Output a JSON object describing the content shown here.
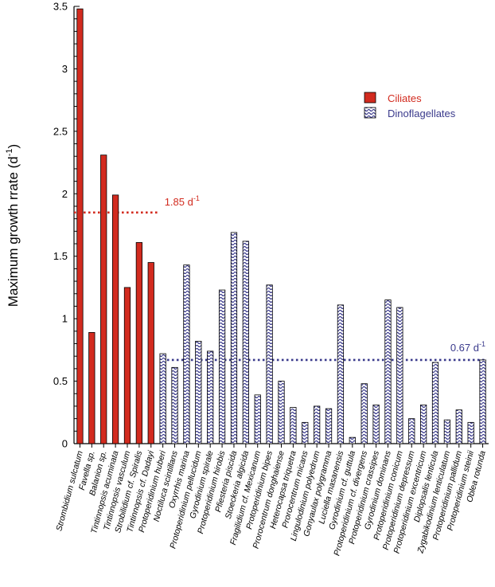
{
  "chart_data": {
    "type": "bar",
    "title": "",
    "xlabel": "",
    "ylabel": "Maximum growth rrate (d",
    "ylabel_sup": "-1",
    "ylabel_tail": ")",
    "ylim": [
      0,
      3.5
    ],
    "yticks": [
      "0",
      "0.5",
      "1",
      "1.5",
      "2",
      "2.5",
      "3",
      "3.5"
    ],
    "grid": false,
    "legend_position": "top-right",
    "series": [
      {
        "name": "Ciliates",
        "color": "#d22b1f",
        "fill": "solid",
        "categories": [
          "Strombidium sulcatum",
          "Favella sp.",
          "Balanion sp.",
          "Tintinnopsis acuminata",
          "Tintinnopsis vasculum",
          "Strobilidium cf. Spiralis",
          "Tintinnopsis cf. Dadayi"
        ],
        "values": [
          3.48,
          0.89,
          2.31,
          1.99,
          1.25,
          1.61,
          1.45
        ]
      },
      {
        "name": "Dinoflagellates",
        "color": "#3a3a8c",
        "fill": "wavy",
        "categories": [
          "Protoperidinium huberi",
          "Noctiluca scintillans",
          "Oxyrrhis marina",
          "Protoperidinium pellucidum",
          "Gyrodinium spirale",
          "Protoperidinium hirobis",
          "Pfiesteria piscida",
          "Stoeckeria algicida",
          "Fragilidium cf. Mexicanum",
          "Protoperidinium bipes",
          "Prorocentrum donghaiense",
          "Heterocapsa triquetra",
          "Prorocentrum micans",
          "Lingulodinium polyedrum",
          "Gonyaulax polygramma",
          "Luciella masanensis",
          "Gyrodinium cf. guttula",
          "Protoperidinium cf. divergens",
          "Protoperidinium crassipes",
          "Gyrodinium dominans",
          "Protoperidinium conicum",
          "Protoperidinium depressum",
          "Protoperidinium excentricum",
          "Diplopsalis lenticula",
          "Zygabikodinium lenticulatum",
          "Protoperidinium pallidum",
          "Protoperidinium steinii",
          "Oblea rotunda"
        ],
        "values": [
          0.72,
          0.61,
          1.43,
          0.82,
          0.74,
          1.23,
          1.69,
          1.62,
          0.39,
          1.27,
          0.5,
          0.29,
          0.17,
          0.3,
          0.28,
          1.11,
          0.05,
          0.48,
          0.31,
          1.15,
          1.09,
          0.2,
          0.31,
          0.65,
          0.19,
          0.27,
          0.17,
          0.67
        ]
      }
    ],
    "reference_lines": [
      {
        "series": "Ciliates",
        "value": 1.85,
        "label": "1.85 d",
        "label_sup": "-1",
        "color": "#d22b1f"
      },
      {
        "series": "Dinoflagellates",
        "value": 0.67,
        "label": "0.67 d",
        "label_sup": "-1",
        "color": "#3a3a8c"
      }
    ]
  }
}
